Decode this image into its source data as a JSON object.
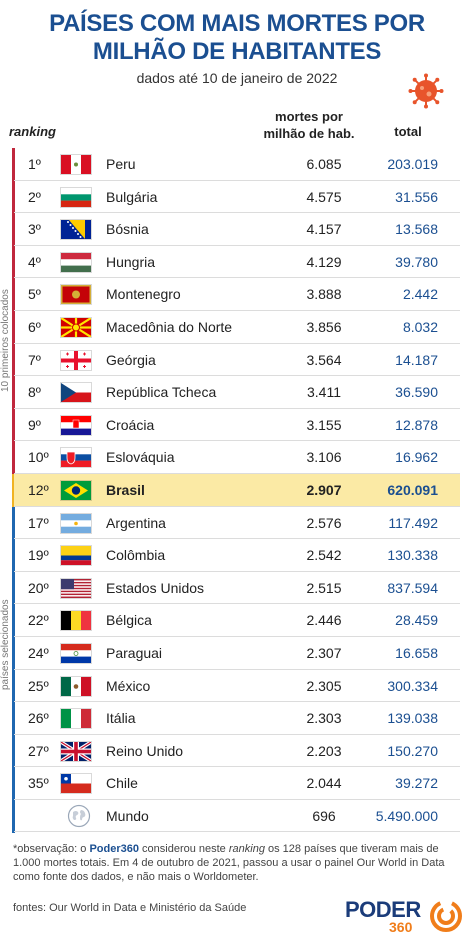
{
  "title_line1": "PAÍSES COM MAIS MORTES POR",
  "title_line2": "MILHÃO DE HABITANTES",
  "subtitle": "dados até 10 de janeiro de 2022",
  "header": {
    "ranking": "ranking",
    "mortes_line1": "mortes por",
    "mortes_line2": "milhão de hab.",
    "total": "total"
  },
  "vertical_labels": {
    "top10": "10 primeiros colocados",
    "selected": "países selecionados"
  },
  "colors": {
    "accent": "#1b4f91",
    "highlight": "#fbeaa5",
    "top10_bar": "#c0283d",
    "brazil_bar": "#f0b323",
    "selected_bar": "#1f67b0"
  },
  "rows": [
    {
      "rank": "1º",
      "flag": "peru-flag",
      "country": "Peru",
      "mortes": "6.085",
      "total": "203.019"
    },
    {
      "rank": "2º",
      "flag": "bulgaria-flag",
      "country": "Bulgária",
      "mortes": "4.575",
      "total": "31.556"
    },
    {
      "rank": "3º",
      "flag": "bosnia-flag",
      "country": "Bósnia",
      "mortes": "4.157",
      "total": "13.568"
    },
    {
      "rank": "4º",
      "flag": "hungary-flag",
      "country": "Hungria",
      "mortes": "4.129",
      "total": "39.780"
    },
    {
      "rank": "5º",
      "flag": "montenegro-flag",
      "country": "Montenegro",
      "mortes": "3.888",
      "total": "2.442"
    },
    {
      "rank": "6º",
      "flag": "north-macedonia-flag",
      "country": "Macedônia do Norte",
      "mortes": "3.856",
      "total": "8.032"
    },
    {
      "rank": "7º",
      "flag": "georgia-flag",
      "country": "Geórgia",
      "mortes": "3.564",
      "total": "14.187"
    },
    {
      "rank": "8º",
      "flag": "czech-flag",
      "country": "República Tcheca",
      "mortes": "3.411",
      "total": "36.590"
    },
    {
      "rank": "9º",
      "flag": "croatia-flag",
      "country": "Croácia",
      "mortes": "3.155",
      "total": "12.878"
    },
    {
      "rank": "10º",
      "flag": "slovakia-flag",
      "country": "Eslováquia",
      "mortes": "3.106",
      "total": "16.962"
    },
    {
      "rank": "12º",
      "flag": "brazil-flag",
      "country": "Brasil",
      "mortes": "2.907",
      "total": "620.091",
      "highlight": true
    },
    {
      "rank": "17º",
      "flag": "argentina-flag",
      "country": "Argentina",
      "mortes": "2.576",
      "total": "117.492"
    },
    {
      "rank": "19º",
      "flag": "colombia-flag",
      "country": "Colômbia",
      "mortes": "2.542",
      "total": "130.338"
    },
    {
      "rank": "20º",
      "flag": "usa-flag",
      "country": "Estados Unidos",
      "mortes": "2.515",
      "total": "837.594"
    },
    {
      "rank": "22º",
      "flag": "belgium-flag",
      "country": "Bélgica",
      "mortes": "2.446",
      "total": "28.459"
    },
    {
      "rank": "24º",
      "flag": "paraguay-flag",
      "country": "Paraguai",
      "mortes": "2.307",
      "total": "16.658"
    },
    {
      "rank": "25º",
      "flag": "mexico-flag",
      "country": "México",
      "mortes": "2.305",
      "total": "300.334"
    },
    {
      "rank": "26º",
      "flag": "italy-flag",
      "country": "Itália",
      "mortes": "2.303",
      "total": "139.038"
    },
    {
      "rank": "27º",
      "flag": "uk-flag",
      "country": "Reino Unido",
      "mortes": "2.203",
      "total": "150.270"
    },
    {
      "rank": "35º",
      "flag": "chile-flag",
      "country": "Chile",
      "mortes": "2.044",
      "total": "39.272"
    },
    {
      "rank": "",
      "flag": "globe-icon",
      "country": "Mundo",
      "mortes": "696",
      "total": "5.490.000"
    }
  ],
  "note": {
    "p1": "*observação: o ",
    "brand": "Poder360",
    "p2": " considerou neste ",
    "italic": "ranking",
    "p3": " os 128 países que tiveram mais de 1.000 mortes totais. Em 4 de outubro de 2021, passou a usar o painel Our World in Data como fonte dos dados, e não mais o Worldometer."
  },
  "sources": "fontes: Our World in Data e Ministério da Saúde",
  "logo": {
    "name": "PODER",
    "number": "360"
  }
}
